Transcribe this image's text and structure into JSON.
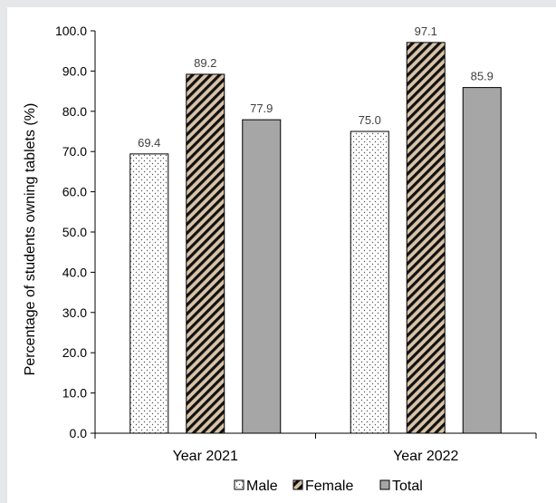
{
  "chart_data": {
    "type": "bar",
    "title": "",
    "xlabel": "",
    "ylabel": "Percentage of students owning tablets (%)",
    "ylim": [
      0,
      100
    ],
    "yticks": [
      0,
      10,
      20,
      30,
      40,
      50,
      60,
      70,
      80,
      90,
      100
    ],
    "ytick_labels": [
      "0.0",
      "10.0",
      "20.0",
      "30.0",
      "40.0",
      "50.0",
      "60.0",
      "70.0",
      "80.0",
      "90.0",
      "100.0"
    ],
    "categories": [
      "Year 2021",
      "Year 2022"
    ],
    "series": [
      {
        "name": "Male",
        "values": [
          69.4,
          75.0
        ],
        "value_labels": [
          "69.4",
          "75.0"
        ],
        "pattern": "dots",
        "color": "#ffffff"
      },
      {
        "name": "Female",
        "values": [
          89.2,
          97.1
        ],
        "value_labels": [
          "89.2",
          "97.1"
        ],
        "pattern": "diagonal-stripes",
        "color": "#d9c3a8"
      },
      {
        "name": "Total",
        "values": [
          77.9,
          85.9
        ],
        "value_labels": [
          "77.9",
          "85.9"
        ],
        "pattern": "solid",
        "color": "#a6a6a6"
      }
    ],
    "grid": false,
    "legend_position": "bottom",
    "data_label_color": "#404040"
  }
}
